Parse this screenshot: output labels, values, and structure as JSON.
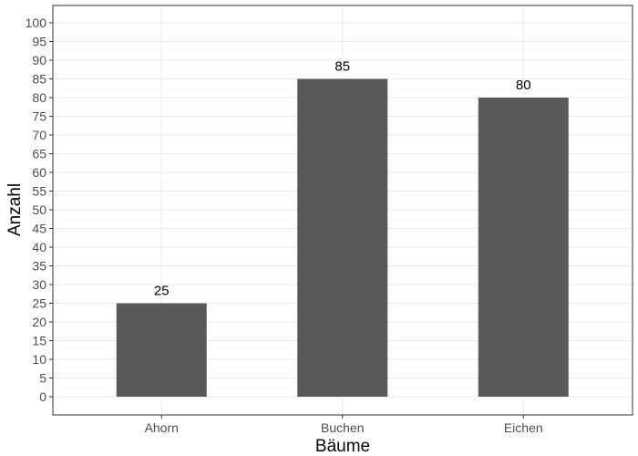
{
  "chart_data": {
    "type": "bar",
    "categories": [
      "Ahorn",
      "Buchen",
      "Eichen"
    ],
    "values": [
      25,
      85,
      80
    ],
    "data_labels": [
      "25",
      "85",
      "80"
    ],
    "title": "",
    "xlabel": "Bäume",
    "ylabel": "Anzahl",
    "ylim": [
      0,
      100
    ],
    "y_ticks": [
      0,
      5,
      10,
      15,
      20,
      25,
      30,
      35,
      40,
      45,
      50,
      55,
      60,
      65,
      70,
      75,
      80,
      85,
      90,
      95,
      100
    ],
    "grid": true,
    "legend": "none",
    "colors": {
      "bar": "#595959",
      "grid": "#ebebeb",
      "panel_border": "#333333",
      "tick_text": "#4d4d4d",
      "text": "#000000"
    }
  }
}
